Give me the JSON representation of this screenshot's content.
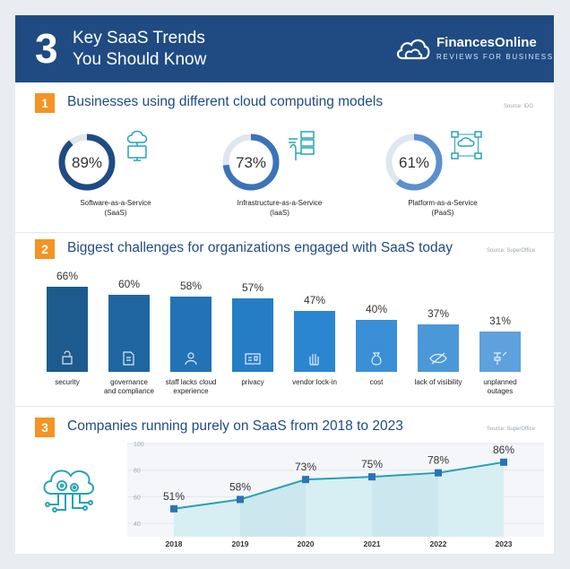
{
  "header": {
    "number": "3",
    "title_line1": "Key SaaS Trends",
    "title_line2": "You Should Know",
    "brand": "FinancesOnline",
    "brand_sub": "REVIEWS FOR BUSINESS"
  },
  "section1": {
    "number": "1",
    "title": "Businesses using different cloud computing models",
    "source": "Source: IDG",
    "items": [
      {
        "pct_label": "89%",
        "value": 89,
        "line1": "Software-as-a-Service",
        "line2": "(SaaS)",
        "icon": "cloud-monitor-icon",
        "color": "#1f4b82"
      },
      {
        "pct_label": "73%",
        "value": 73,
        "line1": "Infrastructure-as-a-Service",
        "line2": "(IaaS)",
        "icon": "hand-servers-icon",
        "color": "#3b73b9"
      },
      {
        "pct_label": "61%",
        "value": 61,
        "line1": "Platform-as-a-Service",
        "line2": "(PaaS)",
        "icon": "network-diagram-icon",
        "color": "#5b8fd0"
      }
    ]
  },
  "section2": {
    "number": "2",
    "title": "Biggest challenges for organizations engaged with SaaS today",
    "source": "Source: SuperOffice",
    "bars": [
      {
        "pct_label": "66%",
        "value": 66,
        "line1": "security",
        "line2": "",
        "icon": "lock-icon",
        "color": "#1d5a8e"
      },
      {
        "pct_label": "60%",
        "value": 60,
        "line1": "governance",
        "line2": "and compliance",
        "icon": "document-icon",
        "color": "#1f66a1"
      },
      {
        "pct_label": "58%",
        "value": 58,
        "line1": "staff lacks cloud",
        "line2": "experience",
        "icon": "person-icon",
        "color": "#2272b5"
      },
      {
        "pct_label": "57%",
        "value": 57,
        "line1": "privacy",
        "line2": "",
        "icon": "id-card-icon",
        "color": "#257dc6"
      },
      {
        "pct_label": "47%",
        "value": 47,
        "line1": "vendor lock-in",
        "line2": "",
        "icon": "hand-stop-icon",
        "color": "#2b86d1"
      },
      {
        "pct_label": "40%",
        "value": 40,
        "line1": "cost",
        "line2": "",
        "icon": "money-bag-icon",
        "color": "#3a8fd6"
      },
      {
        "pct_label": "37%",
        "value": 37,
        "line1": "lack of visibility",
        "line2": "",
        "icon": "eye-slash-icon",
        "color": "#4b98d9"
      },
      {
        "pct_label": "31%",
        "value": 31,
        "line1": "unplanned",
        "line2": "outages",
        "icon": "broken-plug-icon",
        "color": "#5ea1dc"
      }
    ]
  },
  "section3": {
    "number": "3",
    "title": "Companies running purely on SaaS from 2018 to 2023",
    "source": "Source: SuperOffice",
    "icon": "cloud-gears-icon"
  },
  "chart_data": [
    {
      "type": "pie",
      "title": "Businesses using different cloud computing models",
      "categories": [
        "Software-as-a-Service (SaaS)",
        "Infrastructure-as-a-Service (IaaS)",
        "Platform-as-a-Service (PaaS)"
      ],
      "values": [
        89,
        73,
        61
      ]
    },
    {
      "type": "bar",
      "title": "Biggest challenges for organizations engaged with SaaS today",
      "categories": [
        "security",
        "governance and compliance",
        "staff lacks cloud experience",
        "privacy",
        "vendor lock-in",
        "cost",
        "lack of visibility",
        "unplanned outages"
      ],
      "values": [
        66,
        60,
        58,
        57,
        47,
        40,
        37,
        31
      ],
      "ylim": [
        0,
        100
      ]
    },
    {
      "type": "area",
      "title": "Companies running purely on SaaS from 2018 to 2023",
      "categories": [
        "2018",
        "2019",
        "2020",
        "2021",
        "2022",
        "2023"
      ],
      "values": [
        51,
        58,
        73,
        75,
        78,
        86
      ],
      "value_labels": [
        "51%",
        "58%",
        "73%",
        "75%",
        "78%",
        "86%"
      ],
      "yticks": [
        "40",
        "60",
        "80",
        "100"
      ],
      "ylim": [
        30,
        100
      ]
    }
  ],
  "colors": {
    "brand": "#1f4b82",
    "accent": "#f39425",
    "line": "#24a1b5",
    "area": "#d7eef3"
  }
}
